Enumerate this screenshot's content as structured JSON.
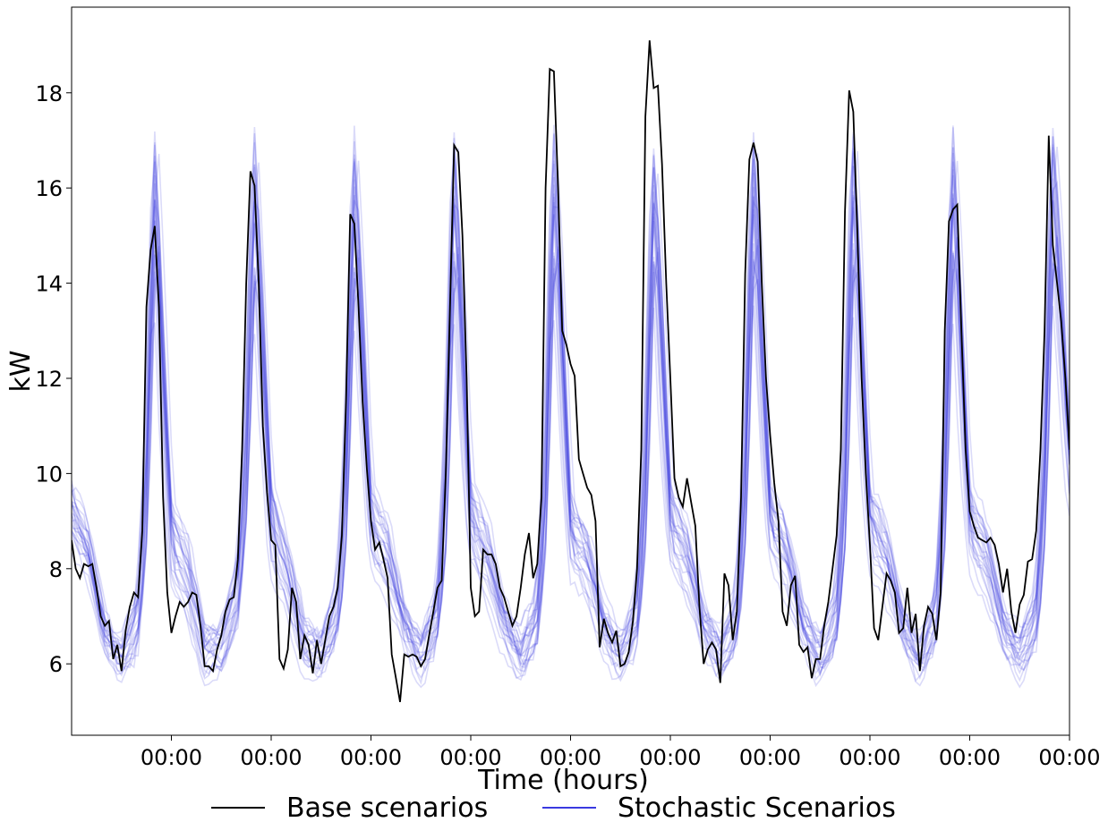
{
  "chart_data": {
    "type": "line",
    "title": "",
    "xlabel": "Time (hours)",
    "ylabel": "kW",
    "ylim": [
      4.5,
      19.8
    ],
    "xlim": [
      0,
      240
    ],
    "yticks": [
      6,
      8,
      10,
      12,
      14,
      16,
      18
    ],
    "xticks": [
      24,
      48,
      72,
      96,
      120,
      144,
      168,
      192,
      216,
      240
    ],
    "xtick_labels": [
      "00:00",
      "00:00",
      "00:00",
      "00:00",
      "00:00",
      "00:00",
      "00:00",
      "00:00",
      "00:00",
      "00:00"
    ],
    "grid": false,
    "legend": {
      "placement": "bottom-center",
      "entries": [
        {
          "name": "Base scenarios",
          "color": "#000000"
        },
        {
          "name": "Stochastic Scenarios",
          "color": "#3a3ae0"
        }
      ]
    },
    "base_series": {
      "name": "Base scenarios",
      "color": "#000000",
      "x": [
        0,
        1,
        2,
        3,
        4,
        5,
        6,
        7,
        8,
        9,
        10,
        11,
        12,
        13,
        14,
        15,
        16,
        17,
        18,
        19,
        20,
        21,
        22,
        23,
        24,
        25,
        26,
        27,
        28,
        29,
        30,
        31,
        32,
        33,
        34,
        35,
        36,
        37,
        38,
        39,
        40,
        41,
        42,
        43,
        44,
        45,
        46,
        47,
        48,
        49,
        50,
        51,
        52,
        53,
        54,
        55,
        56,
        57,
        58,
        59,
        60,
        61,
        62,
        63,
        64,
        65,
        66,
        67,
        68,
        69,
        70,
        71,
        72,
        73,
        74,
        75,
        76,
        77,
        78,
        79,
        80,
        81,
        82,
        83,
        84,
        85,
        86,
        87,
        88,
        89,
        90,
        91,
        92,
        93,
        94,
        95,
        96,
        97,
        98,
        99,
        100,
        101,
        102,
        103,
        104,
        105,
        106,
        107,
        108,
        109,
        110,
        111,
        112,
        113,
        114,
        115,
        116,
        117,
        118,
        119,
        120,
        121,
        122,
        123,
        124,
        125,
        126,
        127,
        128,
        129,
        130,
        131,
        132,
        133,
        134,
        135,
        136,
        137,
        138,
        139,
        140,
        141,
        142,
        143,
        144,
        145,
        146,
        147,
        148,
        149,
        150,
        151,
        152,
        153,
        154,
        155,
        156,
        157,
        158,
        159,
        160,
        161,
        162,
        163,
        164,
        165,
        166,
        167,
        168,
        169,
        170,
        171,
        172,
        173,
        174,
        175,
        176,
        177,
        178,
        179,
        180,
        181,
        182,
        183,
        184,
        185,
        186,
        187,
        188,
        189,
        190,
        191,
        192,
        193,
        194,
        195,
        196,
        197,
        198,
        199,
        200,
        201,
        202,
        203,
        204,
        205,
        206,
        207,
        208,
        209,
        210,
        211,
        212,
        213,
        214,
        215,
        216,
        217,
        218,
        219,
        220,
        221,
        222,
        223,
        224,
        225,
        226,
        227,
        228,
        229,
        230,
        231,
        232,
        233,
        234,
        235,
        236,
        237,
        238,
        239,
        240
      ],
      "y": [
        8.6,
        8.0,
        7.8,
        8.1,
        8.05,
        8.1,
        7.6,
        7.0,
        6.8,
        6.9,
        6.1,
        6.4,
        5.85,
        6.7,
        7.2,
        7.5,
        7.4,
        8.8,
        13.5,
        14.7,
        15.2,
        13.5,
        9.5,
        7.5,
        6.65,
        7.0,
        7.3,
        7.2,
        7.3,
        7.5,
        7.45,
        6.8,
        5.95,
        5.95,
        5.85,
        6.3,
        6.6,
        7.1,
        7.35,
        7.4,
        8.2,
        10.5,
        14.0,
        16.35,
        16.05,
        14.0,
        11.0,
        9.6,
        8.6,
        8.5,
        6.1,
        5.9,
        6.3,
        7.6,
        7.3,
        6.1,
        6.6,
        6.4,
        5.8,
        6.5,
        6.0,
        6.5,
        7.0,
        7.2,
        7.6,
        8.7,
        11.5,
        15.45,
        15.25,
        13.5,
        11.5,
        10.1,
        9.0,
        8.4,
        8.55,
        8.2,
        7.8,
        6.2,
        5.7,
        5.2,
        6.2,
        6.15,
        6.2,
        6.15,
        5.95,
        6.1,
        6.6,
        7.1,
        7.6,
        7.75,
        10.0,
        13.5,
        16.9,
        16.75,
        15.0,
        12.0,
        7.6,
        7.0,
        7.1,
        8.4,
        8.3,
        8.3,
        8.1,
        7.6,
        7.4,
        7.1,
        6.8,
        7.0,
        7.6,
        8.3,
        8.75,
        7.8,
        8.1,
        9.5,
        16.0,
        18.5,
        18.45,
        16.0,
        13.0,
        12.7,
        12.3,
        12.05,
        10.3,
        10.0,
        9.7,
        9.55,
        9.0,
        6.35,
        6.95,
        6.65,
        6.45,
        6.7,
        5.95,
        6.0,
        6.25,
        6.9,
        8.0,
        10.5,
        17.5,
        19.1,
        18.1,
        18.15,
        16.5,
        14.0,
        12.0,
        9.9,
        9.5,
        9.3,
        9.9,
        9.4,
        8.9,
        7.2,
        6.0,
        6.3,
        6.45,
        6.3,
        5.6,
        7.9,
        7.65,
        6.5,
        7.1,
        9.5,
        14.2,
        16.6,
        16.95,
        16.55,
        14.0,
        12.0,
        10.8,
        9.8,
        9.0,
        7.1,
        6.8,
        7.65,
        7.85,
        6.4,
        6.25,
        6.35,
        5.7,
        6.1,
        6.1,
        6.8,
        7.3,
        8.0,
        8.7,
        10.5,
        15.5,
        18.05,
        17.6,
        15.0,
        12.0,
        10.0,
        8.5,
        6.75,
        6.5,
        7.2,
        7.9,
        7.75,
        7.5,
        6.65,
        6.75,
        7.6,
        6.65,
        7.05,
        5.85,
        6.8,
        7.2,
        7.05,
        6.5,
        7.5,
        13.0,
        15.3,
        15.55,
        15.65,
        13.0,
        10.5,
        9.2,
        8.9,
        8.65,
        8.6,
        8.55,
        8.65,
        8.5,
        8.1,
        7.5,
        8.0,
        7.1,
        6.65,
        7.25,
        7.45,
        8.15,
        8.2,
        8.8,
        10.5,
        13.0,
        17.1,
        14.8,
        14.0,
        13.2,
        12.0,
        10.5
      ]
    },
    "stochastic_series": {
      "name": "Stochastic Scenarios",
      "color": "#3a3ae0",
      "count": 24,
      "envelope": {
        "x": [
          0,
          4,
          8,
          12,
          16,
          18,
          20,
          22,
          24,
          28,
          32,
          36,
          40,
          42,
          44,
          46,
          48,
          52,
          56,
          60,
          64,
          66,
          68,
          70,
          72,
          76,
          80,
          84,
          88,
          90,
          92,
          94,
          96,
          100,
          104,
          108,
          112,
          114,
          116,
          118,
          120,
          124,
          128,
          132,
          136,
          138,
          140,
          142,
          144,
          148,
          152,
          156,
          160,
          162,
          164,
          166,
          168,
          172,
          176,
          180,
          184,
          186,
          188,
          190,
          192,
          196,
          200,
          204,
          208,
          210,
          212,
          214,
          216,
          220,
          224,
          228,
          232,
          234,
          236,
          238,
          240
        ],
        "y_low": [
          8.5,
          7.8,
          6.2,
          5.6,
          6.1,
          8.0,
          14.3,
          10.0,
          7.6,
          6.9,
          5.65,
          5.8,
          6.6,
          8.5,
          13.8,
          10.5,
          8.0,
          7.0,
          5.8,
          5.7,
          6.3,
          8.0,
          13.8,
          10.5,
          8.0,
          7.4,
          6.4,
          5.6,
          6.2,
          8.0,
          14.2,
          10.5,
          8.0,
          7.4,
          6.4,
          5.6,
          6.2,
          8.0,
          14.4,
          10.5,
          7.8,
          7.3,
          6.3,
          5.6,
          6.2,
          8.0,
          14.3,
          10.5,
          8.0,
          7.4,
          6.3,
          5.6,
          6.2,
          8.0,
          14.4,
          10.5,
          8.0,
          7.4,
          6.3,
          5.6,
          6.2,
          8.0,
          14.4,
          10.5,
          8.0,
          7.4,
          6.3,
          5.6,
          6.2,
          8.0,
          14.4,
          10.5,
          8.0,
          7.4,
          6.3,
          5.6,
          6.2,
          8.0,
          14.4,
          11.5,
          9.3
        ],
        "y_mid": [
          9.0,
          8.3,
          6.5,
          6.0,
          6.8,
          9.5,
          16.2,
          12.0,
          8.6,
          7.8,
          6.1,
          6.3,
          7.4,
          10.0,
          16.0,
          12.5,
          9.0,
          7.9,
          6.2,
          6.1,
          7.0,
          9.5,
          16.0,
          12.5,
          9.0,
          8.2,
          6.8,
          6.0,
          6.8,
          9.5,
          16.5,
          12.5,
          9.0,
          8.2,
          6.8,
          6.0,
          6.8,
          9.5,
          16.2,
          12.5,
          8.8,
          8.1,
          6.7,
          6.0,
          6.8,
          9.5,
          16.3,
          12.5,
          9.0,
          8.2,
          6.7,
          6.0,
          6.8,
          9.5,
          16.3,
          12.5,
          9.0,
          8.2,
          6.7,
          6.0,
          6.8,
          9.5,
          16.3,
          12.5,
          9.0,
          8.2,
          6.7,
          6.0,
          6.8,
          9.5,
          16.2,
          12.5,
          9.0,
          8.2,
          6.7,
          6.0,
          6.8,
          9.5,
          16.5,
          13.5,
          10.2
        ],
        "y_high": [
          9.8,
          8.9,
          7.0,
          6.5,
          7.6,
          11.0,
          17.6,
          13.8,
          9.4,
          8.6,
          6.8,
          6.9,
          8.2,
          11.5,
          17.6,
          14.2,
          9.8,
          8.6,
          6.9,
          6.6,
          7.8,
          11.0,
          17.5,
          14.2,
          9.8,
          9.0,
          7.3,
          6.6,
          7.6,
          11.0,
          17.6,
          14.2,
          9.8,
          9.0,
          7.3,
          6.6,
          7.6,
          11.0,
          17.5,
          14.2,
          9.6,
          8.9,
          7.2,
          6.6,
          7.6,
          11.0,
          17.3,
          14.2,
          9.8,
          9.0,
          7.2,
          6.6,
          7.6,
          11.0,
          17.6,
          14.2,
          9.8,
          9.0,
          7.2,
          6.6,
          7.6,
          11.0,
          17.6,
          14.2,
          9.8,
          9.0,
          7.2,
          6.6,
          7.6,
          11.0,
          17.6,
          14.2,
          9.8,
          9.0,
          7.2,
          6.6,
          7.6,
          11.0,
          17.6,
          15.0,
          11.0
        ]
      }
    }
  }
}
